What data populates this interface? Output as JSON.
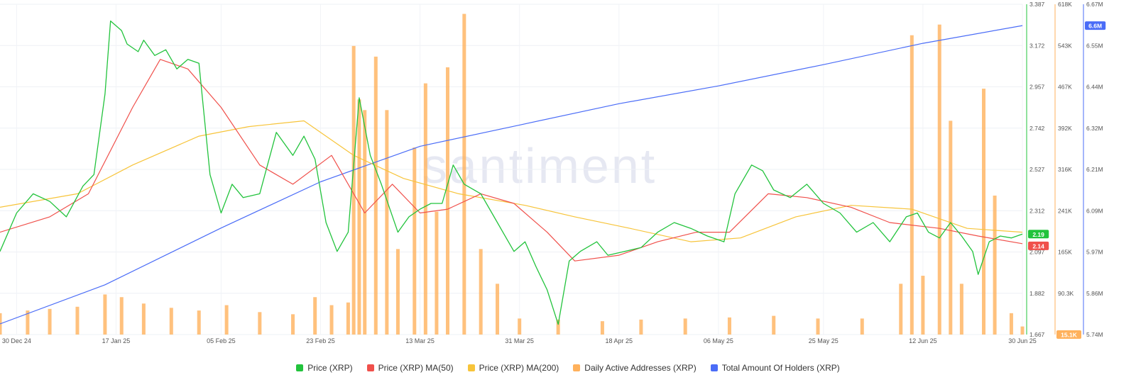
{
  "watermark": "santiment",
  "chart_data": {
    "type": "line",
    "colors": {
      "price": "#22c33c",
      "ma50": "#f0504b",
      "ma200": "#f7c43a",
      "active_addresses": "#ffb15c",
      "holders": "#4a6cf7"
    },
    "x_axis": {
      "start": "2024-12-27",
      "end": "2025-06-30",
      "tick_labels": [
        {
          "date": "2024-12-30",
          "label": "30 Dec 24"
        },
        {
          "date": "2025-01-17",
          "label": "17 Jan 25"
        },
        {
          "date": "2025-02-05",
          "label": "05 Feb 25"
        },
        {
          "date": "2025-02-23",
          "label": "23 Feb 25"
        },
        {
          "date": "2025-03-13",
          "label": "13 Mar 25"
        },
        {
          "date": "2025-03-31",
          "label": "31 Mar 25"
        },
        {
          "date": "2025-04-18",
          "label": "18 Apr 25"
        },
        {
          "date": "2025-05-06",
          "label": "06 May 25"
        },
        {
          "date": "2025-05-25",
          "label": "25 May 25"
        },
        {
          "date": "2025-06-12",
          "label": "12 Jun 25"
        },
        {
          "date": "2025-06-30",
          "label": "30 Jun 25"
        }
      ]
    },
    "y_axes": {
      "price": {
        "range": [
          1.667,
          3.387
        ],
        "ticks": [
          "3.387",
          "3.172",
          "2.957",
          "2.742",
          "2.527",
          "2.312",
          "2.097",
          "1.882",
          "1.667"
        ]
      },
      "active_addresses": {
        "range": [
          0,
          618000
        ],
        "ticks": [
          "618K",
          "543K",
          "467K",
          "392K",
          "316K",
          "241K",
          "165K",
          "90.3K",
          "15.1K"
        ]
      },
      "holders": {
        "range": [
          5.74,
          6.67
        ],
        "ticks": [
          "6.67M",
          "6.55M",
          "6.44M",
          "6.32M",
          "6.21M",
          "6.09M",
          "5.97M",
          "5.86M",
          "5.74M"
        ]
      }
    },
    "current_badges": {
      "price": "2.19",
      "ma50": "2.14",
      "active_addresses": "15.1K",
      "holders": "6.6M"
    },
    "series": [
      {
        "name": "Price (XRP)",
        "key": "price",
        "points": [
          [
            "2024-12-27",
            2.1
          ],
          [
            "2024-12-30",
            2.3
          ],
          [
            "2025-01-02",
            2.4
          ],
          [
            "2025-01-05",
            2.36
          ],
          [
            "2025-01-08",
            2.28
          ],
          [
            "2025-01-11",
            2.44
          ],
          [
            "2025-01-13",
            2.5
          ],
          [
            "2025-01-15",
            2.92
          ],
          [
            "2025-01-16",
            3.3
          ],
          [
            "2025-01-18",
            3.25
          ],
          [
            "2025-01-19",
            3.18
          ],
          [
            "2025-01-21",
            3.14
          ],
          [
            "2025-01-22",
            3.2
          ],
          [
            "2025-01-24",
            3.12
          ],
          [
            "2025-01-26",
            3.15
          ],
          [
            "2025-01-28",
            3.05
          ],
          [
            "2025-01-30",
            3.1
          ],
          [
            "2025-02-01",
            3.08
          ],
          [
            "2025-02-03",
            2.5
          ],
          [
            "2025-02-05",
            2.3
          ],
          [
            "2025-02-07",
            2.45
          ],
          [
            "2025-02-09",
            2.38
          ],
          [
            "2025-02-12",
            2.4
          ],
          [
            "2025-02-15",
            2.72
          ],
          [
            "2025-02-18",
            2.6
          ],
          [
            "2025-02-20",
            2.7
          ],
          [
            "2025-02-22",
            2.58
          ],
          [
            "2025-02-24",
            2.25
          ],
          [
            "2025-02-26",
            2.1
          ],
          [
            "2025-02-28",
            2.2
          ],
          [
            "2025-03-02",
            2.9
          ],
          [
            "2025-03-04",
            2.6
          ],
          [
            "2025-03-06",
            2.45
          ],
          [
            "2025-03-09",
            2.2
          ],
          [
            "2025-03-11",
            2.28
          ],
          [
            "2025-03-13",
            2.32
          ],
          [
            "2025-03-15",
            2.35
          ],
          [
            "2025-03-17",
            2.35
          ],
          [
            "2025-03-19",
            2.55
          ],
          [
            "2025-03-21",
            2.45
          ],
          [
            "2025-03-24",
            2.4
          ],
          [
            "2025-03-26",
            2.3
          ],
          [
            "2025-03-28",
            2.2
          ],
          [
            "2025-03-30",
            2.1
          ],
          [
            "2025-04-01",
            2.15
          ],
          [
            "2025-04-03",
            2.02
          ],
          [
            "2025-04-05",
            1.9
          ],
          [
            "2025-04-07",
            1.72
          ],
          [
            "2025-04-09",
            2.05
          ],
          [
            "2025-04-11",
            2.1
          ],
          [
            "2025-04-14",
            2.15
          ],
          [
            "2025-04-16",
            2.08
          ],
          [
            "2025-04-19",
            2.1
          ],
          [
            "2025-04-22",
            2.12
          ],
          [
            "2025-04-25",
            2.2
          ],
          [
            "2025-04-28",
            2.25
          ],
          [
            "2025-05-01",
            2.22
          ],
          [
            "2025-05-04",
            2.18
          ],
          [
            "2025-05-07",
            2.15
          ],
          [
            "2025-05-09",
            2.4
          ],
          [
            "2025-05-12",
            2.55
          ],
          [
            "2025-05-14",
            2.52
          ],
          [
            "2025-05-16",
            2.42
          ],
          [
            "2025-05-19",
            2.38
          ],
          [
            "2025-05-22",
            2.45
          ],
          [
            "2025-05-25",
            2.35
          ],
          [
            "2025-05-28",
            2.3
          ],
          [
            "2025-05-31",
            2.2
          ],
          [
            "2025-06-03",
            2.25
          ],
          [
            "2025-06-06",
            2.15
          ],
          [
            "2025-06-09",
            2.28
          ],
          [
            "2025-06-11",
            2.3
          ],
          [
            "2025-06-13",
            2.2
          ],
          [
            "2025-06-15",
            2.17
          ],
          [
            "2025-06-17",
            2.25
          ],
          [
            "2025-06-19",
            2.18
          ],
          [
            "2025-06-21",
            2.1
          ],
          [
            "2025-06-22",
            1.98
          ],
          [
            "2025-06-24",
            2.15
          ],
          [
            "2025-06-26",
            2.18
          ],
          [
            "2025-06-28",
            2.17
          ],
          [
            "2025-06-30",
            2.19
          ]
        ]
      },
      {
        "name": "Price (XRP) MA(50)",
        "key": "ma50",
        "points": [
          [
            "2024-12-27",
            2.2
          ],
          [
            "2025-01-05",
            2.28
          ],
          [
            "2025-01-12",
            2.4
          ],
          [
            "2025-01-20",
            2.85
          ],
          [
            "2025-01-25",
            3.1
          ],
          [
            "2025-01-30",
            3.05
          ],
          [
            "2025-02-05",
            2.85
          ],
          [
            "2025-02-12",
            2.55
          ],
          [
            "2025-02-18",
            2.45
          ],
          [
            "2025-02-25",
            2.6
          ],
          [
            "2025-03-03",
            2.3
          ],
          [
            "2025-03-08",
            2.45
          ],
          [
            "2025-03-13",
            2.3
          ],
          [
            "2025-03-18",
            2.32
          ],
          [
            "2025-03-24",
            2.4
          ],
          [
            "2025-03-30",
            2.35
          ],
          [
            "2025-04-05",
            2.2
          ],
          [
            "2025-04-10",
            2.05
          ],
          [
            "2025-04-18",
            2.08
          ],
          [
            "2025-04-25",
            2.15
          ],
          [
            "2025-05-02",
            2.2
          ],
          [
            "2025-05-08",
            2.2
          ],
          [
            "2025-05-15",
            2.4
          ],
          [
            "2025-05-22",
            2.38
          ],
          [
            "2025-05-30",
            2.33
          ],
          [
            "2025-06-06",
            2.25
          ],
          [
            "2025-06-15",
            2.22
          ],
          [
            "2025-06-22",
            2.18
          ],
          [
            "2025-06-30",
            2.14
          ]
        ]
      },
      {
        "name": "Price (XRP) MA(200)",
        "key": "ma200",
        "points": [
          [
            "2024-12-27",
            2.33
          ],
          [
            "2025-01-10",
            2.4
          ],
          [
            "2025-01-20",
            2.55
          ],
          [
            "2025-02-01",
            2.7
          ],
          [
            "2025-02-10",
            2.75
          ],
          [
            "2025-02-20",
            2.78
          ],
          [
            "2025-03-01",
            2.6
          ],
          [
            "2025-03-10",
            2.48
          ],
          [
            "2025-03-20",
            2.4
          ],
          [
            "2025-04-01",
            2.34
          ],
          [
            "2025-04-10",
            2.28
          ],
          [
            "2025-04-20",
            2.22
          ],
          [
            "2025-05-01",
            2.15
          ],
          [
            "2025-05-10",
            2.17
          ],
          [
            "2025-05-20",
            2.28
          ],
          [
            "2025-05-30",
            2.34
          ],
          [
            "2025-06-10",
            2.32
          ],
          [
            "2025-06-20",
            2.22
          ],
          [
            "2025-06-30",
            2.2
          ]
        ]
      },
      {
        "name": "Daily Active Addresses (XRP)",
        "key": "active_addresses",
        "type": "bar",
        "points": [
          [
            "2024-12-27",
            40000
          ],
          [
            "2025-01-01",
            45000
          ],
          [
            "2025-01-05",
            48000
          ],
          [
            "2025-01-10",
            52000
          ],
          [
            "2025-01-15",
            75000
          ],
          [
            "2025-01-18",
            70000
          ],
          [
            "2025-01-22",
            58000
          ],
          [
            "2025-01-27",
            50000
          ],
          [
            "2025-02-01",
            45000
          ],
          [
            "2025-02-06",
            55000
          ],
          [
            "2025-02-12",
            42000
          ],
          [
            "2025-02-18",
            38000
          ],
          [
            "2025-02-22",
            70000
          ],
          [
            "2025-02-25",
            55000
          ],
          [
            "2025-02-28",
            60000
          ],
          [
            "2025-03-01",
            540000
          ],
          [
            "2025-03-02",
            440000
          ],
          [
            "2025-03-03",
            420000
          ],
          [
            "2025-03-05",
            520000
          ],
          [
            "2025-03-07",
            420000
          ],
          [
            "2025-03-09",
            160000
          ],
          [
            "2025-03-12",
            350000
          ],
          [
            "2025-03-14",
            470000
          ],
          [
            "2025-03-16",
            230000
          ],
          [
            "2025-03-18",
            500000
          ],
          [
            "2025-03-21",
            600000
          ],
          [
            "2025-03-24",
            160000
          ],
          [
            "2025-03-27",
            95000
          ],
          [
            "2025-03-31",
            30000
          ],
          [
            "2025-04-07",
            28000
          ],
          [
            "2025-04-15",
            25000
          ],
          [
            "2025-04-22",
            28000
          ],
          [
            "2025-04-30",
            30000
          ],
          [
            "2025-05-08",
            32000
          ],
          [
            "2025-05-16",
            35000
          ],
          [
            "2025-05-24",
            30000
          ],
          [
            "2025-06-01",
            30000
          ],
          [
            "2025-06-08",
            95000
          ],
          [
            "2025-06-10",
            560000
          ],
          [
            "2025-06-12",
            110000
          ],
          [
            "2025-06-15",
            580000
          ],
          [
            "2025-06-17",
            400000
          ],
          [
            "2025-06-19",
            95000
          ],
          [
            "2025-06-23",
            460000
          ],
          [
            "2025-06-25",
            260000
          ],
          [
            "2025-06-28",
            40000
          ],
          [
            "2025-06-30",
            15100
          ]
        ]
      },
      {
        "name": "Total Amount Of Holders (XRP)",
        "key": "holders",
        "points": [
          [
            "2024-12-27",
            5.77
          ],
          [
            "2025-01-15",
            5.88
          ],
          [
            "2025-02-05",
            6.04
          ],
          [
            "2025-02-23",
            6.17
          ],
          [
            "2025-03-13",
            6.27
          ],
          [
            "2025-03-31",
            6.33
          ],
          [
            "2025-04-18",
            6.39
          ],
          [
            "2025-05-06",
            6.44
          ],
          [
            "2025-05-25",
            6.5
          ],
          [
            "2025-06-12",
            6.56
          ],
          [
            "2025-06-30",
            6.61
          ]
        ]
      }
    ],
    "legend_position": "bottom"
  }
}
